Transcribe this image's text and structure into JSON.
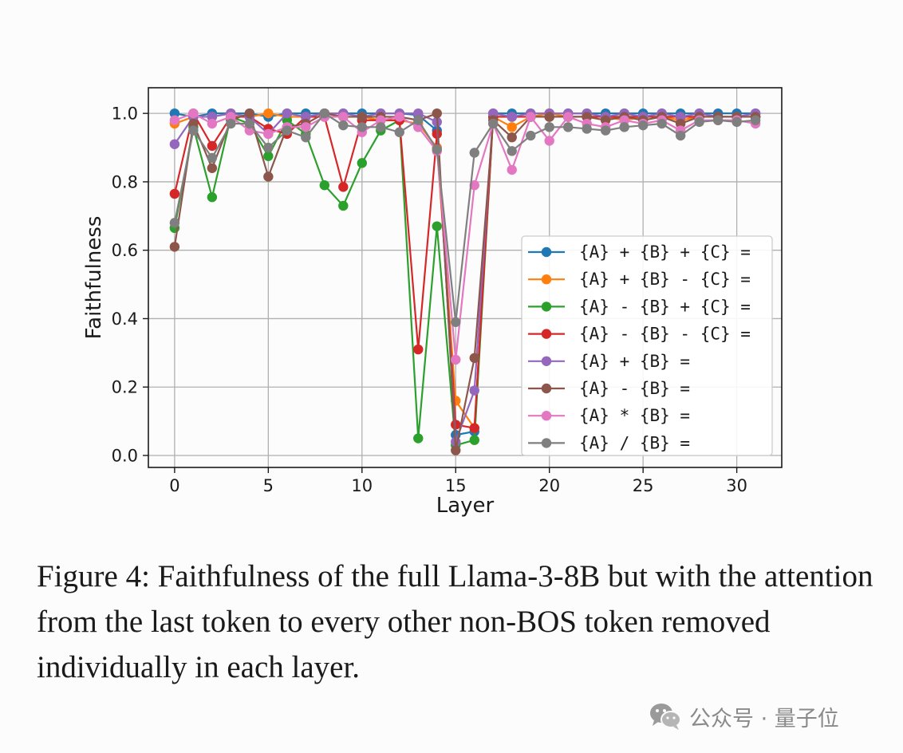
{
  "chart_data": {
    "type": "line",
    "xlabel": "Layer",
    "ylabel": "Faithfulness",
    "xlim": [
      -1.4,
      32.4
    ],
    "ylim": [
      -0.035,
      1.075
    ],
    "xticks": [
      0,
      5,
      10,
      15,
      20,
      25,
      30
    ],
    "yticks": [
      0.0,
      0.2,
      0.4,
      0.6,
      0.8,
      1.0
    ],
    "xtick_labels": [
      "0",
      "5",
      "10",
      "15",
      "20",
      "25",
      "30"
    ],
    "ytick_labels": [
      "0.0",
      "0.2",
      "0.4",
      "0.6",
      "0.8",
      "1.0"
    ],
    "grid": true,
    "legend_position": "center-right",
    "x": [
      0,
      1,
      2,
      3,
      4,
      5,
      6,
      7,
      8,
      9,
      10,
      11,
      12,
      13,
      14,
      15,
      16,
      17,
      18,
      19,
      20,
      21,
      22,
      23,
      24,
      25,
      26,
      27,
      28,
      29,
      30,
      31
    ],
    "series": [
      {
        "name": "{A} + {B} + {C} =",
        "color": "#1f77b4",
        "values": [
          1.0,
          0.99,
          1.0,
          1.0,
          1.0,
          0.99,
          1.0,
          1.0,
          1.0,
          1.0,
          1.0,
          1.0,
          1.0,
          0.995,
          0.95,
          0.06,
          0.07,
          1.0,
          1.0,
          1.0,
          1.0,
          1.0,
          1.0,
          1.0,
          1.0,
          1.0,
          1.0,
          1.0,
          1.0,
          1.0,
          1.0,
          1.0
        ]
      },
      {
        "name": "{A} + {B} - {C} =",
        "color": "#ff7f0e",
        "values": [
          0.97,
          0.99,
          0.99,
          1.0,
          0.99,
          1.0,
          0.99,
          0.99,
          1.0,
          0.99,
          0.99,
          0.98,
          0.98,
          0.97,
          0.9,
          0.16,
          0.08,
          0.99,
          0.96,
          0.99,
          1.0,
          0.99,
          0.99,
          0.99,
          0.98,
          0.99,
          0.99,
          0.98,
          0.99,
          0.99,
          0.99,
          0.99
        ]
      },
      {
        "name": "{A} - {B} + {C} =",
        "color": "#2ca02c",
        "values": [
          0.665,
          0.96,
          0.755,
          0.99,
          0.97,
          0.875,
          0.98,
          0.94,
          0.79,
          0.73,
          0.855,
          0.95,
          0.98,
          0.05,
          0.67,
          0.03,
          0.045,
          0.99,
          0.99,
          0.99,
          0.99,
          0.99,
          0.99,
          0.99,
          0.99,
          0.99,
          0.99,
          0.99,
          0.99,
          0.99,
          0.99,
          0.99
        ]
      },
      {
        "name": "{A} - {B} - {C} =",
        "color": "#d62728",
        "values": [
          0.765,
          1.0,
          0.905,
          0.99,
          0.99,
          0.955,
          0.94,
          0.99,
          0.99,
          0.785,
          0.98,
          0.98,
          0.98,
          0.31,
          0.94,
          0.09,
          0.08,
          0.99,
          0.99,
          0.99,
          0.99,
          0.99,
          0.99,
          0.99,
          0.99,
          0.99,
          0.99,
          0.99,
          0.99,
          0.99,
          0.99,
          0.99
        ]
      },
      {
        "name": "{A} + {B} =",
        "color": "#9467bd",
        "values": [
          0.91,
          0.99,
          0.99,
          1.0,
          0.99,
          0.94,
          1.0,
          0.99,
          1.0,
          1.0,
          0.99,
          1.0,
          1.0,
          1.0,
          0.975,
          0.04,
          0.19,
          1.0,
          0.99,
          1.0,
          1.0,
          1.0,
          1.0,
          0.99,
          1.0,
          0.99,
          1.0,
          0.99,
          1.0,
          0.99,
          0.99,
          1.0
        ]
      },
      {
        "name": "{A} - {B} =",
        "color": "#8c564b",
        "values": [
          0.61,
          0.97,
          0.84,
          0.98,
          1.0,
          0.815,
          0.96,
          0.97,
          1.0,
          0.99,
          0.99,
          0.99,
          0.99,
          0.98,
          1.0,
          0.015,
          0.285,
          0.98,
          0.93,
          0.99,
          0.99,
          0.99,
          0.99,
          0.98,
          0.99,
          0.98,
          0.99,
          0.97,
          0.99,
          0.99,
          0.99,
          0.99
        ]
      },
      {
        "name": "{A} * {B} =",
        "color": "#e377c2",
        "values": [
          0.98,
          1.0,
          0.97,
          0.99,
          0.95,
          0.94,
          0.96,
          0.96,
          0.99,
          0.99,
          0.945,
          0.98,
          0.99,
          0.96,
          0.89,
          0.28,
          0.79,
          0.97,
          0.835,
          0.99,
          0.92,
          0.99,
          0.97,
          0.96,
          0.98,
          0.97,
          0.98,
          0.95,
          0.98,
          0.98,
          0.98,
          0.97
        ]
      },
      {
        "name": "{A} / {B} =",
        "color": "#7f7f7f",
        "values": [
          0.68,
          0.95,
          0.87,
          0.97,
          0.97,
          0.9,
          0.95,
          0.93,
          1.0,
          0.965,
          0.96,
          0.96,
          0.945,
          0.98,
          0.895,
          0.39,
          0.885,
          0.97,
          0.89,
          0.935,
          0.96,
          0.96,
          0.955,
          0.95,
          0.96,
          0.965,
          0.97,
          0.935,
          0.975,
          0.98,
          0.975,
          0.98
        ]
      }
    ]
  },
  "caption": "Figure 4: Faithfulness of the full Llama-3-8B but with the attention from the last token to every other non-BOS token removed individually in each layer.",
  "watermark": {
    "icon": "wechat-icon",
    "text": "公众号 · 量子位"
  }
}
